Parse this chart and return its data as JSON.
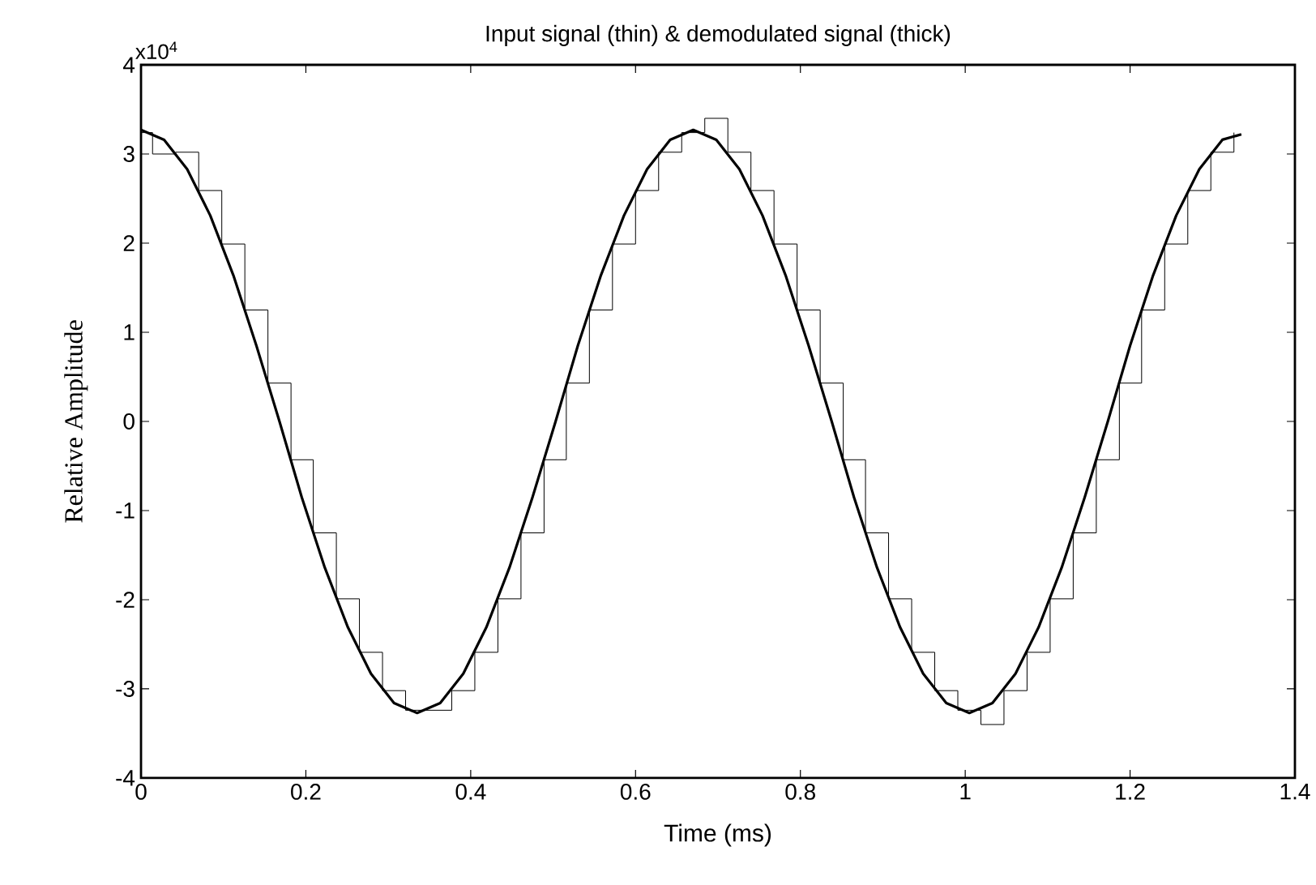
{
  "chart_data": {
    "type": "line",
    "title": "Input signal (thin) & demodulated signal (thick)",
    "xlabel": "Time (ms)",
    "ylabel": "Relative Amplitude",
    "annotations": [
      "x10$^{4}$"
    ],
    "xlim": [
      0,
      1.4
    ],
    "xticks": [
      0,
      0.2,
      0.4,
      0.6,
      0.8,
      1,
      1.2,
      1.4
    ],
    "ylim": [
      -4,
      4
    ],
    "yticks": [
      -4,
      -3,
      -2,
      -1,
      0,
      1,
      2,
      3,
      4
    ],
    "grid": false,
    "series": [
      {
        "type": "step",
        "color": "#000000",
        "x": [
          0,
          0.014,
          0.042,
          0.07,
          0.098,
          0.126,
          0.154,
          0.182,
          0.209,
          0.237,
          0.265,
          0.293,
          0.321,
          0.349,
          0.377,
          0.405,
          0.433,
          0.461,
          0.489,
          0.516,
          0.544,
          0.572,
          0.6,
          0.628,
          0.656,
          0.684,
          0.712,
          0.74,
          0.768,
          0.796,
          0.824,
          0.852,
          0.879,
          0.907,
          0.935,
          0.963,
          0.991,
          1.019,
          1.047,
          1.075,
          1.103,
          1.131,
          1.159,
          1.187,
          1.214,
          1.242,
          1.27,
          1.298,
          1.326
        ],
        "values": [
          3.24,
          3.0,
          3.02,
          2.59,
          1.99,
          1.25,
          0.43,
          -0.43,
          -1.25,
          -1.99,
          -2.59,
          -3.02,
          -3.24,
          -3.24,
          -3.02,
          -2.59,
          -1.99,
          -1.25,
          -0.43,
          0.43,
          1.25,
          1.99,
          2.59,
          3.02,
          3.24,
          3.4,
          3.02,
          2.59,
          1.99,
          1.25,
          0.43,
          -0.43,
          -1.25,
          -1.99,
          -2.59,
          -3.02,
          -3.24,
          -3.4,
          -3.02,
          -2.59,
          -1.99,
          -1.25,
          -0.43,
          0.43,
          1.25,
          1.99,
          2.59,
          3.02,
          3.24
        ]
      },
      {
        "color": "#000000",
        "x": [
          0,
          0.028,
          0.056,
          0.084,
          0.112,
          0.14,
          0.168,
          0.195,
          0.223,
          0.251,
          0.279,
          0.307,
          0.335,
          0.363,
          0.391,
          0.419,
          0.447,
          0.475,
          0.503,
          0.53,
          0.558,
          0.586,
          0.614,
          0.642,
          0.67,
          0.698,
          0.726,
          0.754,
          0.782,
          0.81,
          0.838,
          0.865,
          0.893,
          0.921,
          0.949,
          0.977,
          1.005,
          1.033,
          1.061,
          1.089,
          1.117,
          1.145,
          1.173,
          1.2,
          1.228,
          1.256,
          1.284,
          1.312,
          1.335
        ],
        "values": [
          3.27,
          3.16,
          2.83,
          2.31,
          1.64,
          0.85,
          0,
          -0.85,
          -1.64,
          -2.31,
          -2.83,
          -3.16,
          -3.27,
          -3.16,
          -2.83,
          -2.31,
          -1.64,
          -0.85,
          0,
          0.85,
          1.64,
          2.31,
          2.83,
          3.16,
          3.27,
          3.16,
          2.83,
          2.31,
          1.64,
          0.85,
          0,
          -0.85,
          -1.64,
          -2.31,
          -2.83,
          -3.16,
          -3.27,
          -3.16,
          -2.83,
          -2.31,
          -1.64,
          -0.85,
          0,
          0.85,
          1.64,
          2.31,
          2.83,
          3.16,
          3.22
        ]
      }
    ]
  }
}
